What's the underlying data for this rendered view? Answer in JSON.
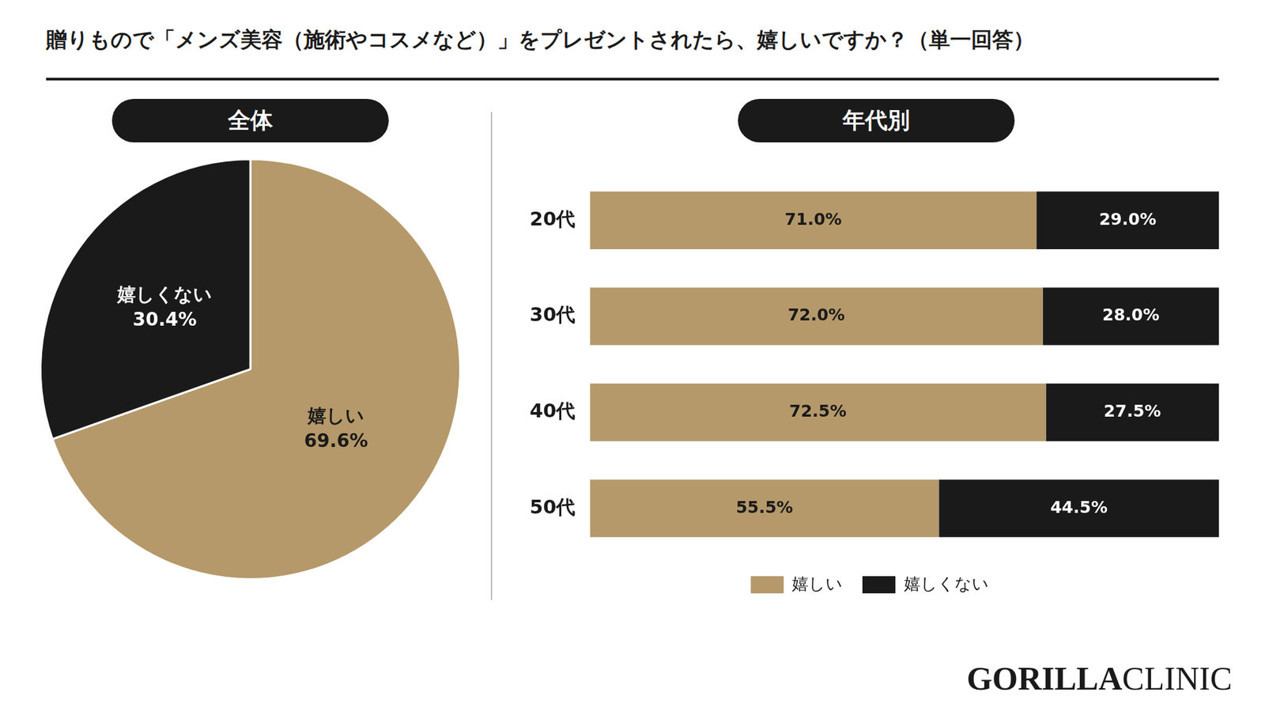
{
  "title": "贈りもので「メンズ美容（施術やコスメなど）」をプレゼントされたら、嬉しいですか？（単一回答）",
  "annotations": [
    "GORILLA",
    "CLINIC"
  ],
  "chart_data": [
    {
      "type": "pie",
      "title": "全体",
      "categories": [
        "嬉しい",
        "嬉しくない"
      ],
      "values": [
        69.6,
        30.4
      ],
      "value_labels": [
        "69.6%",
        "30.4%"
      ],
      "colors": [
        "#b5996a",
        "#1a1a1a"
      ],
      "data_labels": true
    },
    {
      "type": "bar",
      "title": "年代別",
      "orientation": "horizontal",
      "stacked": true,
      "categories": [
        "20代",
        "30代",
        "40代",
        "50代"
      ],
      "series": [
        {
          "name": "嬉しい",
          "color": "#b5996a",
          "values": [
            71.0,
            72.0,
            72.5,
            55.5
          ],
          "value_labels": [
            "71.0%",
            "72.0%",
            "72.5%",
            "55.5%"
          ]
        },
        {
          "name": "嬉しくない",
          "color": "#1a1a1a",
          "values": [
            29.0,
            28.0,
            27.5,
            44.5
          ],
          "value_labels": [
            "29.0%",
            "28.0%",
            "27.5%",
            "44.5%"
          ]
        }
      ],
      "xlim": [
        0,
        100
      ],
      "tick_labels": "y",
      "grid": false,
      "legend": "bottom",
      "data_labels": true
    }
  ]
}
